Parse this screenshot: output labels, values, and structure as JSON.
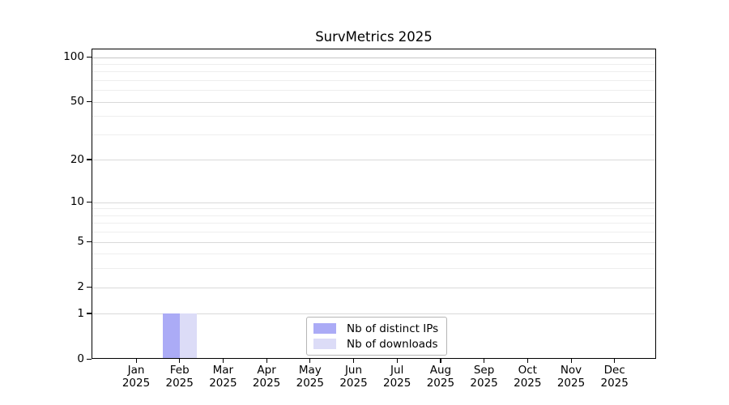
{
  "chart_data": {
    "type": "bar",
    "title": "SurvMetrics 2025",
    "categories": [
      "Jan",
      "Feb",
      "Mar",
      "Apr",
      "May",
      "Jun",
      "Jul",
      "Aug",
      "Sep",
      "Oct",
      "Nov",
      "Dec"
    ],
    "x_tick_second_line": "2025",
    "series": [
      {
        "name": "Nb of distinct IPs",
        "color": "#ababf6",
        "values": [
          0,
          1,
          0,
          0,
          0,
          0,
          0,
          0,
          0,
          0,
          0,
          0
        ]
      },
      {
        "name": "Nb of downloads",
        "color": "#dcdcf7",
        "values": [
          0,
          1,
          0,
          0,
          0,
          0,
          0,
          0,
          0,
          0,
          0,
          0
        ]
      }
    ],
    "y_axis": {
      "scale": "log1p",
      "ticks": [
        0,
        1,
        2,
        5,
        10,
        20,
        50,
        100
      ],
      "minor_gridlines": [
        3,
        4,
        6,
        7,
        8,
        9,
        30,
        40,
        60,
        70,
        80,
        90
      ],
      "ylim": [
        0,
        113.4
      ],
      "grid": true
    },
    "legend": {
      "position": "lower center"
    },
    "colors": {
      "grid_major": "#d9d9d9",
      "grid_minor": "#eeeeee",
      "grid_top_major": "#c6c6c6",
      "axis": "#000000",
      "text": "#000000",
      "legend_border": "#b5b5b5"
    }
  }
}
